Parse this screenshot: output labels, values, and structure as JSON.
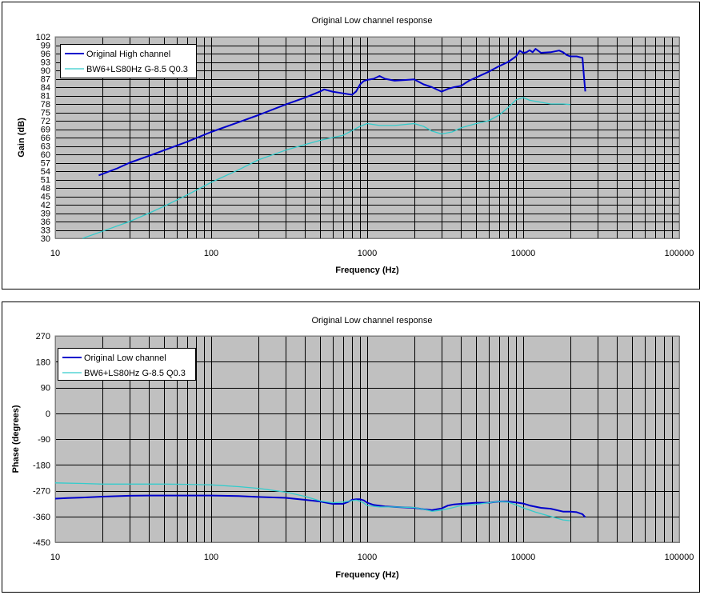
{
  "colors": {
    "plot_bg": "#c0c0c0",
    "grid": "#000000",
    "series_main": "#0000cc",
    "series_sim": "#33cccc"
  },
  "chart_data": [
    {
      "type": "line",
      "title": "Original Low channel response",
      "xlabel": "Frequency (Hz)",
      "ylabel": "Gain (dB)",
      "xscale": "log",
      "xlim": [
        10,
        100000
      ],
      "ylim": [
        30,
        102
      ],
      "x_ticks": [
        "10",
        "100",
        "1000",
        "10000",
        "100000"
      ],
      "y_ticks": [
        "30",
        "33",
        "36",
        "39",
        "42",
        "45",
        "48",
        "51",
        "54",
        "57",
        "60",
        "63",
        "66",
        "69",
        "72",
        "75",
        "78",
        "81",
        "84",
        "87",
        "90",
        "93",
        "96",
        "99",
        "102"
      ],
      "grid": true,
      "legend": "top-left",
      "series": [
        {
          "name": "Original High channel",
          "color_key": "series_main",
          "x": [
            19,
            25,
            30,
            40,
            50,
            70,
            100,
            150,
            200,
            300,
            400,
            500,
            530,
            600,
            700,
            800,
            850,
            900,
            950,
            1000,
            1100,
            1200,
            1300,
            1500,
            1800,
            2000,
            2300,
            2600,
            3000,
            3300,
            3600,
            4000,
            4500,
            5000,
            6000,
            7000,
            8000,
            9000,
            9500,
            10000,
            10500,
            11000,
            11500,
            12000,
            13000,
            15000,
            17000,
            18000,
            19000,
            20000,
            22000,
            24000,
            24500,
            25000
          ],
          "y": [
            52.5,
            55,
            57,
            59.5,
            61.5,
            64.5,
            68,
            71.5,
            74,
            77.8,
            80.3,
            82.5,
            83.2,
            82.4,
            81.8,
            81.3,
            82.5,
            85,
            86.2,
            86.6,
            87,
            88,
            87,
            86.3,
            86.6,
            86.8,
            85,
            84,
            82.4,
            83.4,
            84,
            84.5,
            86.3,
            87.5,
            89.5,
            91.5,
            93,
            95,
            97,
            96.3,
            96.5,
            97.2,
            96.5,
            97.7,
            96.3,
            96.5,
            97.1,
            96.5,
            95.5,
            95,
            95,
            94.5,
            88,
            82.5
          ]
        },
        {
          "name": "BW6+LS80Hz G-8.5 Q0.3",
          "color_key": "series_sim",
          "x": [
            15,
            20,
            30,
            40,
            50,
            70,
            100,
            150,
            200,
            300,
            400,
            500,
            600,
            700,
            800,
            900,
            1000,
            1200,
            1500,
            2000,
            2300,
            2600,
            3000,
            3500,
            4000,
            5000,
            6000,
            7000,
            8000,
            9000,
            10000,
            11000,
            13000,
            15000,
            18000,
            20000
          ],
          "y": [
            30,
            32.5,
            36,
            39,
            41.5,
            45.5,
            50,
            54.5,
            58,
            61.5,
            63.5,
            65,
            66,
            66.8,
            68.5,
            70,
            71,
            70.3,
            70.3,
            71,
            70,
            68.3,
            67.3,
            68,
            69.5,
            71,
            72,
            74,
            76.7,
            79.5,
            80.3,
            79.3,
            78.6,
            78,
            78,
            77.8
          ]
        }
      ]
    },
    {
      "type": "line",
      "title": "Original Low channel response",
      "xlabel": "Frequency (Hz)",
      "ylabel": "Phase (degrees)",
      "xscale": "log",
      "xlim": [
        10,
        100000
      ],
      "ylim": [
        -450,
        270
      ],
      "x_ticks": [
        "10",
        "100",
        "1000",
        "10000",
        "100000"
      ],
      "y_ticks": [
        "-450",
        "-360",
        "-270",
        "-180",
        "-90",
        "0",
        "90",
        "180",
        "270"
      ],
      "grid": true,
      "legend": "top-left",
      "series": [
        {
          "name": "Original Low channel",
          "color_key": "series_main",
          "x": [
            10,
            12,
            15,
            20,
            30,
            40,
            50,
            70,
            100,
            150,
            200,
            300,
            400,
            500,
            600,
            700,
            750,
            800,
            850,
            900,
            950,
            1000,
            1100,
            1300,
            1500,
            2000,
            2300,
            2600,
            3000,
            3300,
            3600,
            4000,
            5000,
            6000,
            7000,
            8000,
            9000,
            10000,
            11000,
            13000,
            15000,
            18000,
            20000,
            22000,
            24000,
            25000
          ],
          "y": [
            -298,
            -296,
            -294,
            -291,
            -288,
            -287,
            -287,
            -287,
            -287,
            -289,
            -292,
            -295,
            -302,
            -308,
            -316,
            -316,
            -310,
            -302,
            -300,
            -300,
            -304,
            -312,
            -320,
            -325,
            -327,
            -330,
            -335,
            -338,
            -332,
            -322,
            -318,
            -316,
            -312,
            -312,
            -308,
            -308,
            -311,
            -315,
            -322,
            -330,
            -333,
            -343,
            -343,
            -345,
            -352,
            -363
          ]
        },
        {
          "name": "BW6+LS80Hz G-8.5 Q0.3",
          "color_key": "series_sim",
          "x": [
            10,
            15,
            20,
            30,
            40,
            50,
            70,
            100,
            150,
            200,
            300,
            400,
            500,
            600,
            700,
            800,
            850,
            900,
            950,
            1000,
            1200,
            1500,
            2000,
            2300,
            2600,
            3000,
            3500,
            4000,
            5000,
            6000,
            7000,
            8000,
            9000,
            10000,
            12000,
            15000,
            18000,
            20000
          ],
          "y": [
            -243,
            -245,
            -247,
            -247,
            -247,
            -247,
            -248,
            -250,
            -256,
            -262,
            -275,
            -290,
            -306,
            -312,
            -310,
            -305,
            -303,
            -307,
            -313,
            -322,
            -327,
            -327,
            -329,
            -335,
            -342,
            -338,
            -330,
            -322,
            -318,
            -312,
            -308,
            -310,
            -320,
            -330,
            -345,
            -360,
            -372,
            -375
          ]
        }
      ]
    }
  ]
}
